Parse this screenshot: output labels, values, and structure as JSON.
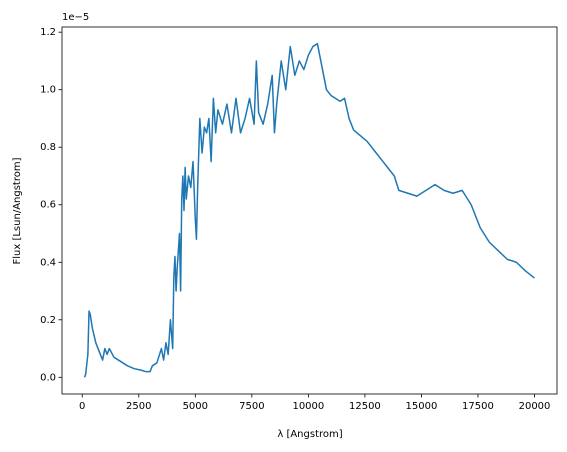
{
  "chart_data": {
    "type": "line",
    "xlabel": "λ [Angstrom]",
    "ylabel": "Flux [Lsun/Angstrom]",
    "y_offset_label": "1e−5",
    "x": [
      100,
      150,
      250,
      300,
      350,
      450,
      600,
      800,
      900,
      1000,
      1100,
      1200,
      1400,
      1600,
      1800,
      2000,
      2300,
      2600,
      2800,
      3000,
      3100,
      3300,
      3500,
      3600,
      3700,
      3800,
      3900,
      4000,
      4050,
      4100,
      4150,
      4200,
      4300,
      4350,
      4400,
      4450,
      4500,
      4550,
      4600,
      4700,
      4800,
      4900,
      5000,
      5050,
      5100,
      5200,
      5300,
      5400,
      5500,
      5600,
      5700,
      5800,
      5900,
      6000,
      6200,
      6400,
      6600,
      6800,
      7000,
      7200,
      7400,
      7600,
      7700,
      7800,
      8000,
      8200,
      8400,
      8500,
      8600,
      8800,
      9000,
      9200,
      9400,
      9600,
      9800,
      10000,
      10200,
      10400,
      10600,
      10800,
      11000,
      11400,
      11600,
      11800,
      12000,
      12300,
      12600,
      13000,
      13500,
      13800,
      14000,
      14400,
      14800,
      15200,
      15600,
      16000,
      16400,
      16800,
      17200,
      17600,
      18000,
      18400,
      18800,
      19200,
      19600,
      20000
    ],
    "series": [
      {
        "color": "#1f77b4",
        "values": [
          0.0,
          0.01,
          0.08,
          0.23,
          0.22,
          0.17,
          0.12,
          0.08,
          0.06,
          0.1,
          0.08,
          0.1,
          0.07,
          0.06,
          0.05,
          0.04,
          0.03,
          0.025,
          0.02,
          0.02,
          0.04,
          0.05,
          0.1,
          0.06,
          0.12,
          0.08,
          0.2,
          0.1,
          0.35,
          0.42,
          0.3,
          0.38,
          0.5,
          0.3,
          0.62,
          0.7,
          0.58,
          0.73,
          0.62,
          0.7,
          0.66,
          0.75,
          0.55,
          0.48,
          0.65,
          0.9,
          0.78,
          0.87,
          0.85,
          0.9,
          0.75,
          0.97,
          0.85,
          0.93,
          0.88,
          0.95,
          0.85,
          0.97,
          0.85,
          0.9,
          0.97,
          0.88,
          1.1,
          0.92,
          0.88,
          0.95,
          1.05,
          0.85,
          0.95,
          1.1,
          1.0,
          1.15,
          1.05,
          1.1,
          1.07,
          1.12,
          1.15,
          1.16,
          1.08,
          1.0,
          0.98,
          0.96,
          0.97,
          0.9,
          0.86,
          0.84,
          0.82,
          0.78,
          0.73,
          0.7,
          0.65,
          0.64,
          0.63,
          0.65,
          0.67,
          0.65,
          0.64,
          0.65,
          0.6,
          0.52,
          0.47,
          0.44,
          0.41,
          0.4,
          0.37,
          0.345
        ]
      }
    ],
    "xlim": [
      -895,
      20995
    ],
    "xticks": [
      0,
      2500,
      5000,
      7500,
      10000,
      12500,
      15000,
      17500,
      20000
    ],
    "ylim": [
      -0.058,
      1.218
    ],
    "yticks": [
      {
        "value": 0,
        "label": "0.0"
      },
      0.2,
      0.4,
      0.6,
      0.8,
      {
        "value": 1,
        "label": "1.0"
      },
      1.2
    ],
    "grid": false
  }
}
